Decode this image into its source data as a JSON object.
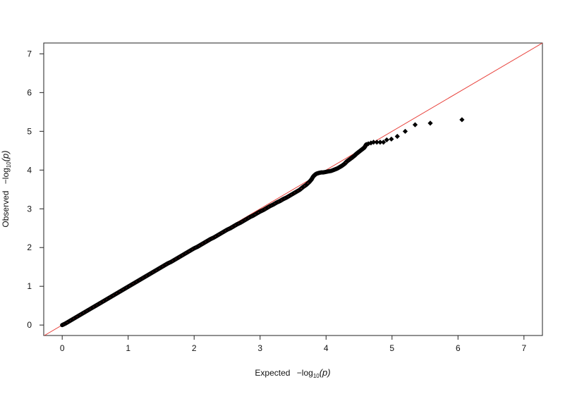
{
  "chart_data": {
    "type": "scatter",
    "title": "",
    "xlabel": {
      "prefix": "Expected",
      "minus": "−log",
      "sub": "10",
      "arg": "(p)"
    },
    "ylabel": {
      "prefix": "Observed",
      "minus": "−log",
      "sub": "10",
      "arg": "(p)"
    },
    "xlim": [
      -0.28,
      7.28
    ],
    "ylim": [
      -0.27,
      7.28
    ],
    "xticks": [
      "0",
      "1",
      "2",
      "3",
      "4",
      "5",
      "6",
      "7"
    ],
    "yticks": [
      "0",
      "1",
      "2",
      "3",
      "4",
      "5",
      "6",
      "7"
    ],
    "grid": false,
    "reference_line": {
      "slope": 1,
      "intercept": 0,
      "color": "#e8403a"
    },
    "point_color": "#000000",
    "point_inner_color": "#7a1f1f",
    "points": [
      [
        0.0,
        0.0
      ],
      [
        0.05,
        0.04
      ],
      [
        0.1,
        0.09
      ],
      [
        0.15,
        0.14
      ],
      [
        0.2,
        0.19
      ],
      [
        0.25,
        0.24
      ],
      [
        0.3,
        0.29
      ],
      [
        0.35,
        0.34
      ],
      [
        0.4,
        0.39
      ],
      [
        0.45,
        0.44
      ],
      [
        0.5,
        0.49
      ],
      [
        0.55,
        0.54
      ],
      [
        0.6,
        0.59
      ],
      [
        0.65,
        0.64
      ],
      [
        0.7,
        0.69
      ],
      [
        0.75,
        0.74
      ],
      [
        0.8,
        0.79
      ],
      [
        0.85,
        0.84
      ],
      [
        0.9,
        0.89
      ],
      [
        0.95,
        0.94
      ],
      [
        1.0,
        0.99
      ],
      [
        1.05,
        1.04
      ],
      [
        1.1,
        1.09
      ],
      [
        1.15,
        1.14
      ],
      [
        1.2,
        1.19
      ],
      [
        1.25,
        1.24
      ],
      [
        1.3,
        1.29
      ],
      [
        1.35,
        1.34
      ],
      [
        1.4,
        1.39
      ],
      [
        1.45,
        1.44
      ],
      [
        1.5,
        1.49
      ],
      [
        1.55,
        1.54
      ],
      [
        1.6,
        1.59
      ],
      [
        1.65,
        1.63
      ],
      [
        1.7,
        1.68
      ],
      [
        1.75,
        1.73
      ],
      [
        1.8,
        1.78
      ],
      [
        1.85,
        1.83
      ],
      [
        1.9,
        1.88
      ],
      [
        1.95,
        1.93
      ],
      [
        2.0,
        1.98
      ],
      [
        2.05,
        2.02
      ],
      [
        2.1,
        2.07
      ],
      [
        2.15,
        2.12
      ],
      [
        2.2,
        2.17
      ],
      [
        2.25,
        2.22
      ],
      [
        2.3,
        2.26
      ],
      [
        2.35,
        2.31
      ],
      [
        2.4,
        2.36
      ],
      [
        2.45,
        2.41
      ],
      [
        2.5,
        2.46
      ],
      [
        2.55,
        2.5
      ],
      [
        2.6,
        2.55
      ],
      [
        2.65,
        2.6
      ],
      [
        2.7,
        2.64
      ],
      [
        2.75,
        2.69
      ],
      [
        2.8,
        2.74
      ],
      [
        2.85,
        2.79
      ],
      [
        2.9,
        2.83
      ],
      [
        2.95,
        2.88
      ],
      [
        3.0,
        2.93
      ],
      [
        3.05,
        2.97
      ],
      [
        3.1,
        3.02
      ],
      [
        3.15,
        3.07
      ],
      [
        3.2,
        3.11
      ],
      [
        3.25,
        3.16
      ],
      [
        3.3,
        3.2
      ],
      [
        3.35,
        3.25
      ],
      [
        3.4,
        3.29
      ],
      [
        3.45,
        3.34
      ],
      [
        3.5,
        3.39
      ],
      [
        3.55,
        3.44
      ],
      [
        3.6,
        3.49
      ],
      [
        3.65,
        3.56
      ],
      [
        3.7,
        3.62
      ],
      [
        3.75,
        3.7
      ],
      [
        3.78,
        3.76
      ],
      [
        3.8,
        3.82
      ],
      [
        3.82,
        3.86
      ],
      [
        3.84,
        3.89
      ],
      [
        3.86,
        3.91
      ],
      [
        3.88,
        3.92
      ],
      [
        3.9,
        3.93
      ],
      [
        3.93,
        3.94
      ],
      [
        3.96,
        3.94
      ],
      [
        3.99,
        3.95
      ],
      [
        4.02,
        3.96
      ],
      [
        4.05,
        3.97
      ],
      [
        4.08,
        3.98
      ],
      [
        4.11,
        4.0
      ],
      [
        4.14,
        4.02
      ],
      [
        4.17,
        4.04
      ],
      [
        4.2,
        4.07
      ],
      [
        4.24,
        4.11
      ],
      [
        4.28,
        4.16
      ],
      [
        4.32,
        4.23
      ],
      [
        4.36,
        4.28
      ],
      [
        4.4,
        4.33
      ],
      [
        4.43,
        4.37
      ],
      [
        4.46,
        4.42
      ],
      [
        4.49,
        4.46
      ],
      [
        4.52,
        4.5
      ],
      [
        4.55,
        4.54
      ],
      [
        4.58,
        4.58
      ],
      [
        4.61,
        4.66
      ],
      [
        4.64,
        4.68
      ],
      [
        4.68,
        4.7
      ],
      [
        4.72,
        4.72
      ],
      [
        4.77,
        4.72
      ],
      [
        4.82,
        4.72
      ],
      [
        4.87,
        4.72
      ],
      [
        4.92,
        4.78
      ],
      [
        4.99,
        4.8
      ],
      [
        5.08,
        4.87
      ],
      [
        5.2,
        5.0
      ],
      [
        5.35,
        5.17
      ],
      [
        5.58,
        5.21
      ],
      [
        6.06,
        5.3
      ]
    ]
  }
}
